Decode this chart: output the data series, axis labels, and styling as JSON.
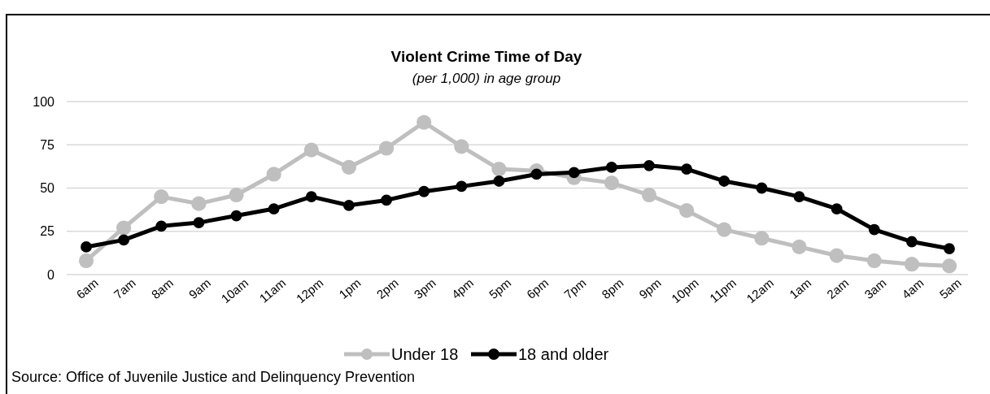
{
  "chart_data": {
    "type": "line",
    "title": "Violent Crime Time of Day",
    "subtitle": "(per 1,000) in age group",
    "categories": [
      "6am",
      "7am",
      "8am",
      "9am",
      "10am",
      "11am",
      "12pm",
      "1pm",
      "2pm",
      "3pm",
      "4pm",
      "5pm",
      "6pm",
      "7pm",
      "8pm",
      "9pm",
      "10pm",
      "11pm",
      "12am",
      "1am",
      "2am",
      "3am",
      "4am",
      "5am"
    ],
    "series": [
      {
        "name": "Under 18",
        "color": "#bfbfbf",
        "values": [
          8,
          27,
          45,
          41,
          46,
          58,
          72,
          62,
          73,
          88,
          74,
          61,
          60,
          56,
          53,
          46,
          37,
          26,
          21,
          16,
          11,
          8,
          6,
          5
        ]
      },
      {
        "name": "18 and older",
        "color": "#000000",
        "values": [
          16,
          20,
          28,
          30,
          34,
          38,
          45,
          40,
          43,
          48,
          51,
          54,
          58,
          59,
          62,
          63,
          61,
          54,
          50,
          45,
          38,
          26,
          19,
          15
        ]
      }
    ],
    "ylim": [
      0,
      100
    ],
    "yticks": [
      0,
      25,
      50,
      75,
      100
    ],
    "grid": "y",
    "legend": "bottom",
    "marker": "circle",
    "line_style": "solid",
    "annotations": [
      "Source: Office of Juvenile Justice and Delinquency Prevention"
    ]
  }
}
